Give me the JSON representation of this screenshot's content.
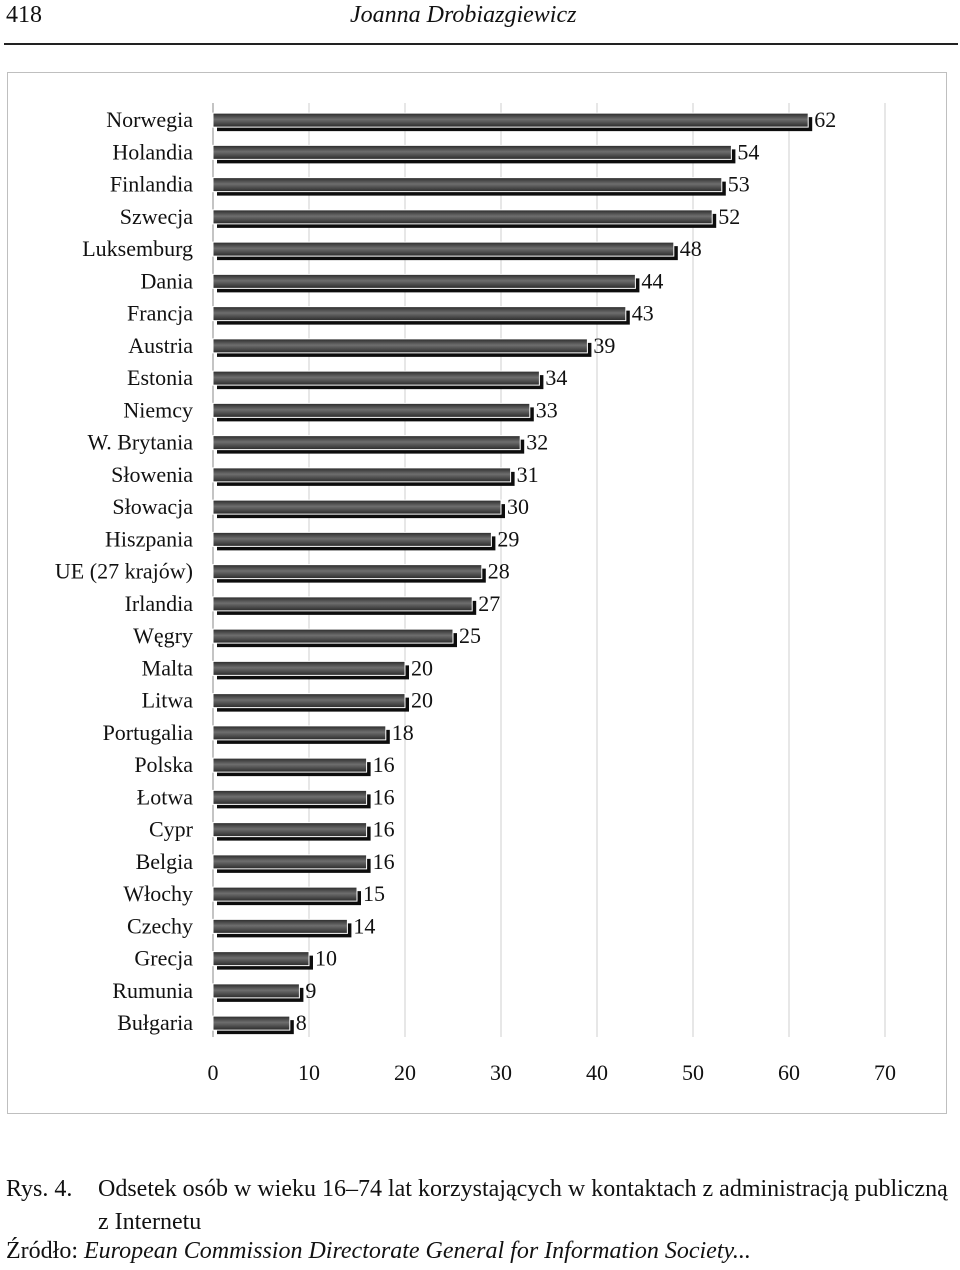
{
  "header": {
    "page_number": "418",
    "running_title": "Joanna Drobiazgiewicz"
  },
  "chart_data": {
    "type": "bar",
    "orientation": "horizontal",
    "categories": [
      "Norwegia",
      "Holandia",
      "Finlandia",
      "Szwecja",
      "Luksemburg",
      "Dania",
      "Francja",
      "Austria",
      "Estonia",
      "Niemcy",
      "W. Brytania",
      "Słowenia",
      "Słowacja",
      "Hiszpania",
      "UE (27 krajów)",
      "Irlandia",
      "Węgry",
      "Malta",
      "Litwa",
      "Portugalia",
      "Polska",
      "Łotwa",
      "Cypr",
      "Belgia",
      "Włochy",
      "Czechy",
      "Grecja",
      "Rumunia",
      "Bułgaria"
    ],
    "values": [
      62,
      54,
      53,
      52,
      48,
      44,
      43,
      39,
      34,
      33,
      32,
      31,
      30,
      29,
      28,
      27,
      25,
      20,
      20,
      18,
      16,
      16,
      16,
      16,
      15,
      14,
      10,
      9,
      8
    ],
    "x_ticks": [
      "0",
      "10",
      "20",
      "30",
      "40",
      "50",
      "60",
      "70"
    ],
    "xlim": [
      0,
      70
    ],
    "grid": true,
    "bar_color": "#4a4a4a",
    "bar_shadow_color": "#0d0d0d",
    "legend": "none"
  },
  "caption": {
    "label": "Rys. 4.",
    "text": "Odsetek osób w wieku 16–74 lat korzystających w kontaktach z administracją publiczną z Internetu"
  },
  "source": {
    "label": "Źródło:",
    "text": "European Commission Directorate General for Information Society..."
  }
}
